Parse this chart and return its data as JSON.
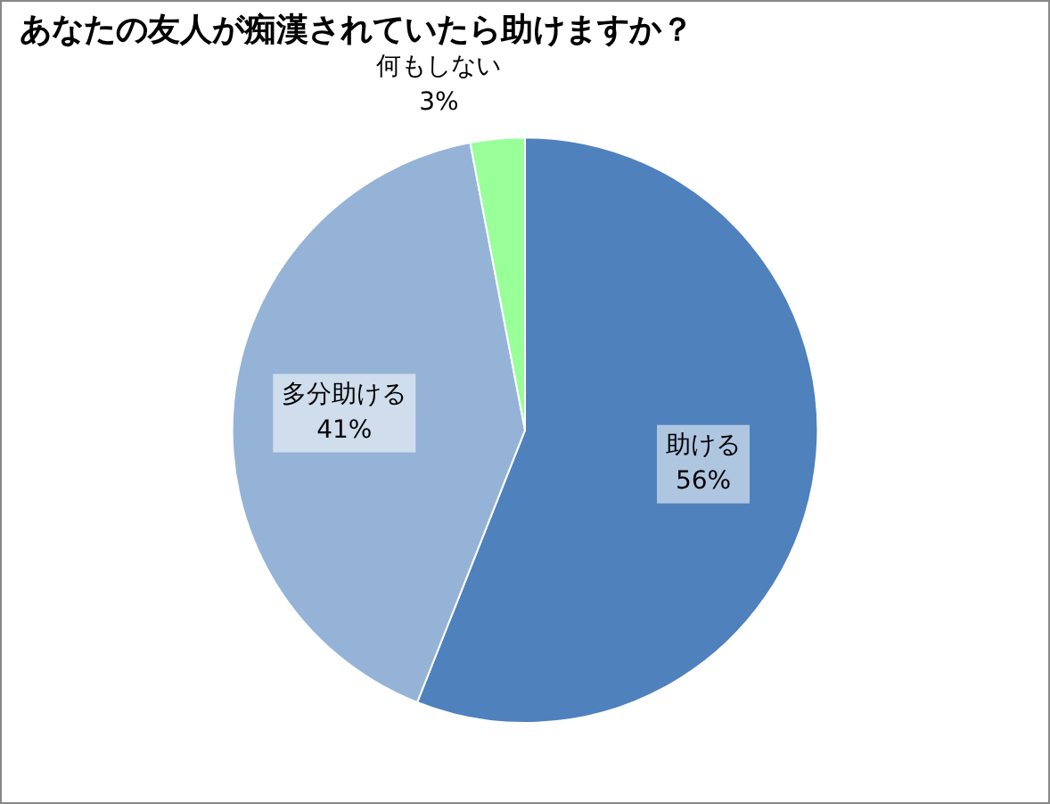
{
  "chart_data": {
    "type": "pie",
    "title": "あなたの友人が痴漢されていたら助けますか？",
    "categories": [
      "助ける",
      "多分助ける",
      "何もしない"
    ],
    "values": [
      56,
      41,
      3
    ],
    "value_labels": [
      "56%",
      "41%",
      "3%"
    ],
    "colors": [
      "#4f81bd",
      "#95b3d7",
      "#99ff99"
    ]
  }
}
